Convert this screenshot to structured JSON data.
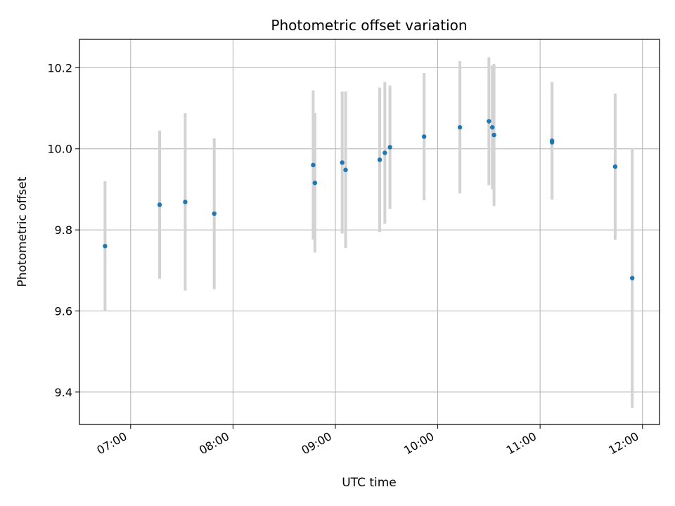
{
  "chart_data": {
    "type": "scatter",
    "title": "Photometric offset variation",
    "xlabel": "UTC time",
    "ylabel": "Photometric offset",
    "x_ticks": [
      "07:00",
      "08:00",
      "09:00",
      "10:00",
      "11:00",
      "12:00"
    ],
    "y_ticks": [
      "9.4",
      "9.6",
      "9.8",
      "10.0",
      "10.2"
    ],
    "xlim": [
      "06:30",
      "12:10"
    ],
    "ylim": [
      9.32,
      10.27
    ],
    "grid": true,
    "point_color": "#1f77b4",
    "errorbar_color": "#d3d3d3",
    "series": [
      {
        "points": [
          {
            "x": "06:45",
            "y": 9.76,
            "err": 0.16
          },
          {
            "x": "07:17",
            "y": 9.862,
            "err": 0.183
          },
          {
            "x": "07:32",
            "y": 9.869,
            "err": 0.219
          },
          {
            "x": "07:49",
            "y": 9.84,
            "err": 0.186
          },
          {
            "x": "08:47",
            "y": 9.96,
            "err": 0.184
          },
          {
            "x": "08:48",
            "y": 9.916,
            "err": 0.172
          },
          {
            "x": "09:04",
            "y": 9.966,
            "err": 0.175
          },
          {
            "x": "09:06",
            "y": 9.948,
            "err": 0.193
          },
          {
            "x": "09:26",
            "y": 9.973,
            "err": 0.178
          },
          {
            "x": "09:29",
            "y": 9.99,
            "err": 0.175
          },
          {
            "x": "09:32",
            "y": 10.004,
            "err": 0.152
          },
          {
            "x": "09:52",
            "y": 10.03,
            "err": 0.157
          },
          {
            "x": "10:13",
            "y": 10.053,
            "err": 0.163
          },
          {
            "x": "10:30",
            "y": 10.068,
            "err": 0.158
          },
          {
            "x": "10:32",
            "y": 10.053,
            "err": 0.153
          },
          {
            "x": "10:33",
            "y": 10.034,
            "err": 0.175
          },
          {
            "x": "11:07",
            "y": 10.016,
            "err": 0.141
          },
          {
            "x": "11:07",
            "y": 10.02,
            "err": 0.145
          },
          {
            "x": "11:44",
            "y": 9.956,
            "err": 0.18
          },
          {
            "x": "11:54",
            "y": 9.681,
            "err": 0.32
          }
        ]
      }
    ]
  }
}
